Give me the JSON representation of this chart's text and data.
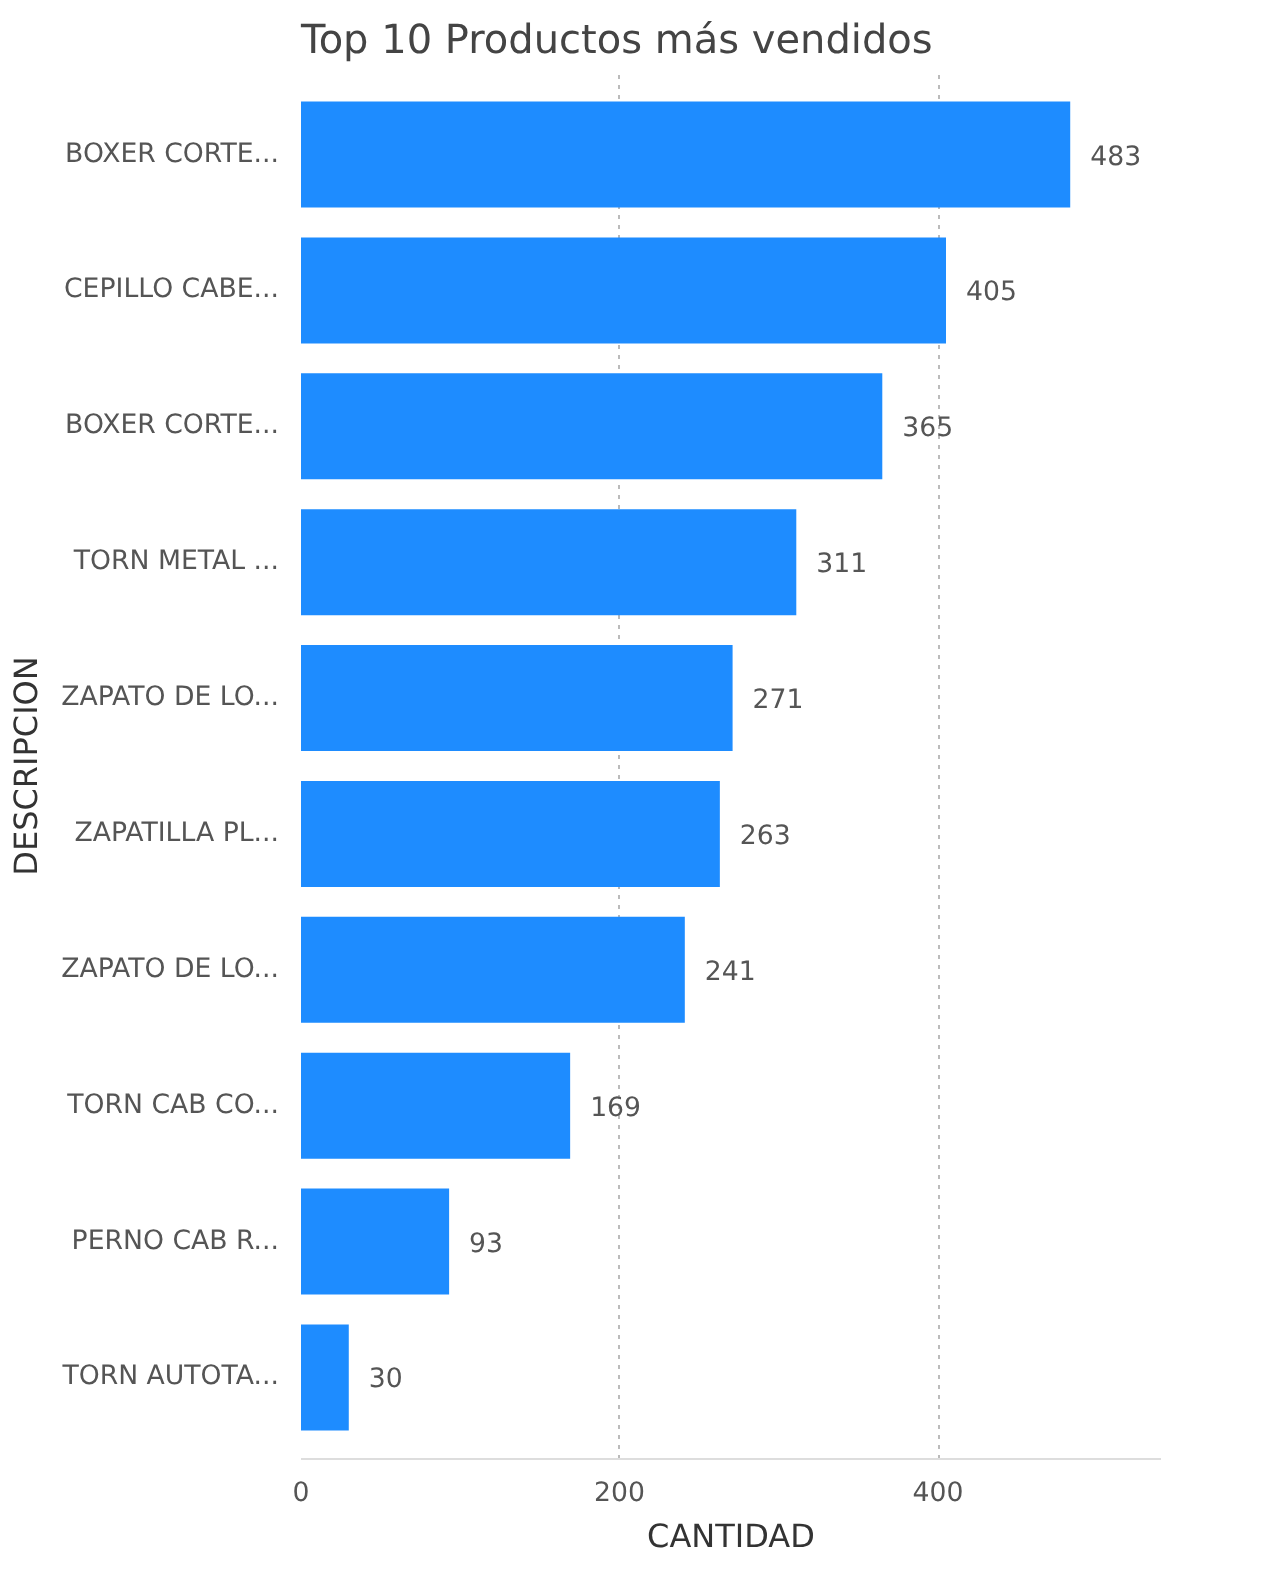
{
  "chart_data": {
    "type": "bar",
    "orientation": "horizontal",
    "title": "Top 10 Productos más vendidos",
    "xlabel": "CANTIDAD",
    "ylabel": "DESCRIPCION",
    "categories": [
      "BOXER CORTE...",
      "CEPILLO CABE...",
      "BOXER CORTE...",
      "TORN METAL ...",
      "ZAPATO DE LO...",
      "ZAPATILLA PL...",
      "ZAPATO DE LO...",
      "TORN CAB CO...",
      "PERNO CAB R...",
      "TORN AUTOTA..."
    ],
    "values": [
      483,
      405,
      365,
      311,
      271,
      263,
      241,
      169,
      93,
      30
    ],
    "color": "#1e8cff",
    "xlim": [
      0,
      540
    ],
    "xticks": [
      0,
      200,
      400
    ],
    "grid": "x",
    "data_labels": true
  }
}
